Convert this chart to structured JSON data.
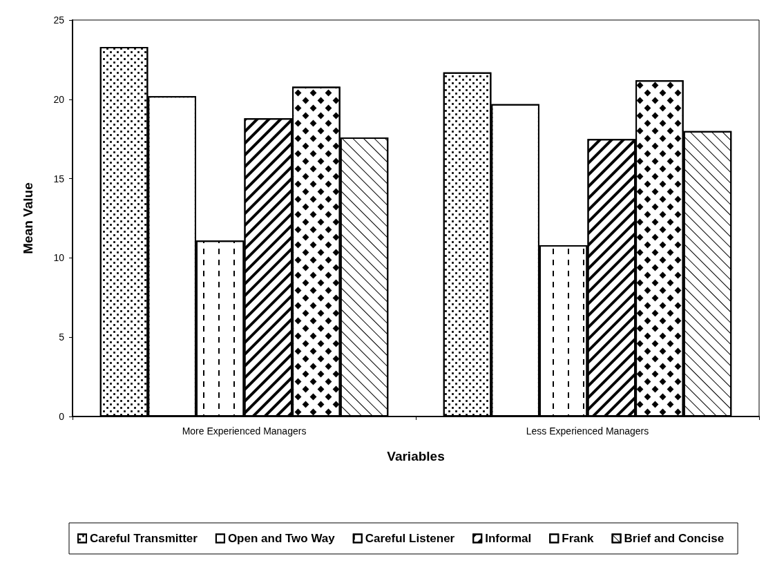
{
  "chart_data": {
    "type": "bar",
    "xlabel": "Variables",
    "ylabel": "Mean Value",
    "categories": [
      "More Experienced Managers",
      "Less Experienced Managers"
    ],
    "series": [
      {
        "name": "Careful Transmitter",
        "color": "#ffffff",
        "values": [
          23.3,
          21.7
        ]
      },
      {
        "name": "Open and Two Way",
        "color": "#ffffff",
        "values": [
          20.2,
          19.7
        ]
      },
      {
        "name": "Careful Listener",
        "color": "#ffffff",
        "values": [
          11.1,
          10.8
        ]
      },
      {
        "name": "Informal",
        "color": "#ffffff",
        "values": [
          18.8,
          17.5
        ]
      },
      {
        "name": "Frank",
        "color": "#ffffff",
        "values": [
          20.8,
          21.2
        ]
      },
      {
        "name": "Brief and Concise",
        "color": "#ffffff",
        "values": [
          17.6,
          18.0
        ]
      }
    ],
    "ylim": [
      0,
      25
    ],
    "yticks": [
      0,
      5,
      10,
      15,
      20,
      25
    ],
    "grid": false,
    "legend": "bottom"
  }
}
